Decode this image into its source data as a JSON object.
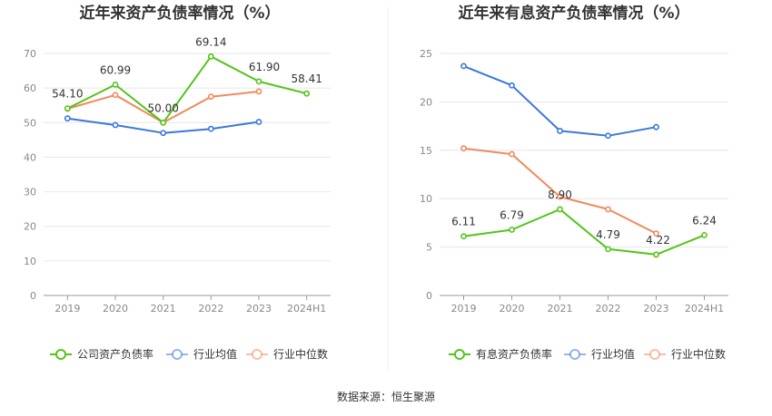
{
  "source": "数据来源：恒生聚源",
  "chart_data": [
    {
      "type": "line",
      "title": "近年来资产负债率情况（%）",
      "categories": [
        "2019",
        "2020",
        "2021",
        "2022",
        "2023",
        "2024H1"
      ],
      "ylim": [
        0,
        70
      ],
      "yticks": [
        0,
        10,
        20,
        30,
        40,
        50,
        60,
        70
      ],
      "grid": true,
      "legend_position": "bottom",
      "series": [
        {
          "name": "公司资产负债率",
          "color": "#52c41a",
          "values": [
            54.1,
            60.99,
            50.0,
            69.14,
            61.9,
            58.41
          ],
          "labels": [
            "54.10",
            "60.99",
            "50.00",
            "69.14",
            "61.90",
            "58.41"
          ]
        },
        {
          "name": "行业均值",
          "color": "#3a78d8",
          "values": [
            51.2,
            49.3,
            47.0,
            48.2,
            50.2,
            null
          ]
        },
        {
          "name": "行业中位数",
          "color": "#f08a5d",
          "values": [
            54.0,
            58.0,
            50.0,
            57.5,
            59.0,
            null
          ]
        }
      ]
    },
    {
      "type": "line",
      "title": "近年来有息资产负债率情况（%）",
      "categories": [
        "2019",
        "2020",
        "2021",
        "2022",
        "2023",
        "2024H1"
      ],
      "ylim": [
        0,
        25
      ],
      "yticks": [
        0,
        5,
        10,
        15,
        20,
        25
      ],
      "grid": true,
      "legend_position": "bottom",
      "series": [
        {
          "name": "有息资产负债率",
          "color": "#52c41a",
          "values": [
            6.11,
            6.79,
            8.9,
            4.79,
            4.22,
            6.24
          ],
          "labels": [
            "6.11",
            "6.79",
            "8.90",
            "4.79",
            "4.22",
            "6.24"
          ]
        },
        {
          "name": "行业均值",
          "color": "#3a78d8",
          "values": [
            23.7,
            21.7,
            17.0,
            16.5,
            17.4,
            null
          ]
        },
        {
          "name": "行业中位数",
          "color": "#f08a5d",
          "values": [
            15.2,
            14.6,
            10.2,
            8.9,
            6.4,
            null
          ]
        }
      ]
    }
  ]
}
